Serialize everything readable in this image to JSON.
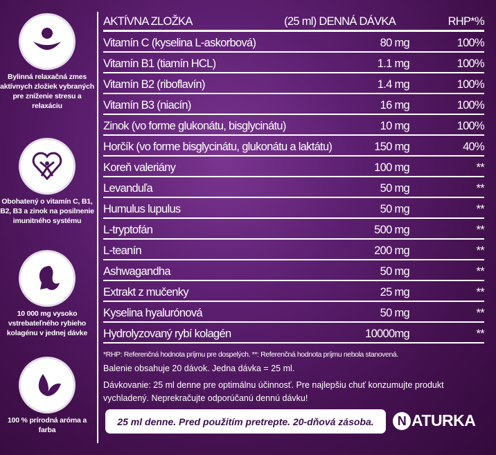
{
  "sidebar": {
    "features": [
      {
        "icon": "hammock-relax-icon",
        "text": "Bylinná relaxačná zmes aktívnych zložiek vybraných pre zníženie stresu a relaxáciu"
      },
      {
        "icon": "heart-person-icon",
        "text": "Obohatený o vitamín C, B1, B2, B3 a zinok na posilnenie imunitného systému"
      },
      {
        "icon": "woman-hair-icon",
        "text": "10 000 mg vysoko vstrebateľného rybieho kolagénu v jednej dávke"
      },
      {
        "icon": "leaf-icon",
        "text": "100 % prírodná aróma a farba"
      }
    ]
  },
  "table": {
    "headers": [
      "AKTÍVNA ZLOŽKA",
      "(25 ml) DENNÁ DÁVKA",
      "RHP*%"
    ],
    "rows": [
      [
        "Vitamín C (kyselina L-askorbová)",
        "80 mg",
        "100%"
      ],
      [
        "Vitamín B1 (tiamín HCL)",
        "1.1 mg",
        "100%"
      ],
      [
        "Vitamín B2 (riboflavín)",
        "1.4 mg",
        "100%"
      ],
      [
        "Vitamín B3 (niacín)",
        "16 mg",
        "100%"
      ],
      [
        "Zinok (vo forme glukonátu, bisglycinátu)",
        "10 mg",
        "100%"
      ],
      [
        "Horčík (vo forme bisglycinátu, glukonátu a laktátu)",
        "150 mg",
        "40%"
      ],
      [
        "Koreň valeriány",
        "100 mg",
        "**"
      ],
      [
        "Levanduľa",
        "50 mg",
        "**"
      ],
      [
        "Humulus lupulus",
        "50 mg",
        "**"
      ],
      [
        "L-tryptofán",
        "500 mg",
        "**"
      ],
      [
        "L-teanín",
        "200 mg",
        "**"
      ],
      [
        "Ashwagandha",
        "50 mg",
        "**"
      ],
      [
        "Extrakt z mučenky",
        "25 mg",
        "**"
      ],
      [
        "Kyselina hyalurónová",
        "50 mg",
        "**"
      ],
      [
        "Hydrolyzovaný rybí kolagén",
        "10000mg",
        "**"
      ]
    ]
  },
  "notes": {
    "footnote": "*RHP: Referenčná hodnota príjmu pre dospelých. **: Referenčná hodnota príjmu nebola stanovená.",
    "package": "Balenie obsahuje 20 dávok. Jedna dávka = 25 ml.",
    "dosage": "Dávkovanie: 25 ml denne pre optimálnu účinnosť. Pre najlepšiu chuť konzumujte produkt vychladený. Neprekračujte odporúčanú dennú dávku!"
  },
  "banner": "25 ml denne. Pred použitím pretrepte. 20-dňová zásoba.",
  "brand": {
    "logo_letter": "N",
    "name_rest": "ATURKA"
  },
  "colors": {
    "background": "#5c1f70",
    "text": "#ffffff",
    "banner_text": "#3a0f4a"
  }
}
